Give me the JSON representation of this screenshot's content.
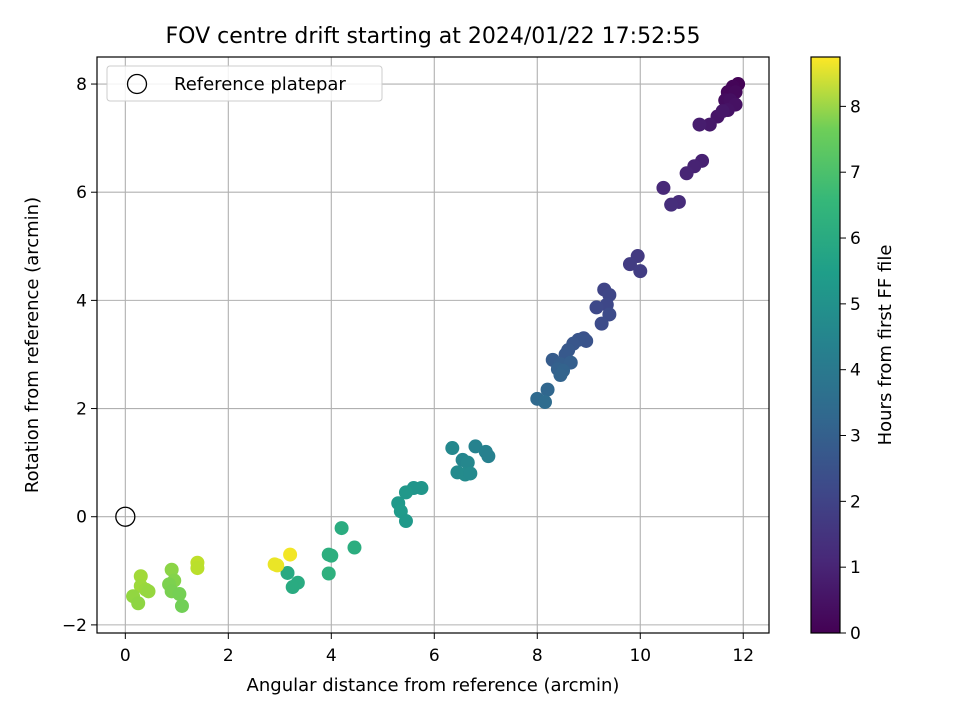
{
  "chart_data": {
    "type": "scatter",
    "title": "FOV centre drift starting at 2024/01/22 17:52:55",
    "xlabel": "Angular distance from reference (arcmin)",
    "ylabel": "Rotation from reference (arcmin)",
    "xlim": [
      -0.55,
      12.5
    ],
    "ylim": [
      -2.15,
      8.5
    ],
    "xticks": [
      "0",
      "2",
      "4",
      "6",
      "8",
      "10",
      "12"
    ],
    "yticks": [
      "−2",
      "0",
      "2",
      "4",
      "6",
      "8"
    ],
    "grid": true,
    "legend": {
      "placement": "top-left",
      "entries": [
        "Reference platepar"
      ]
    },
    "reference_point": {
      "x": 0,
      "y": 0
    },
    "colorbar": {
      "label": "Hours from first FF file",
      "colormap": "viridis",
      "range": [
        0,
        8.75
      ],
      "ticks": [
        "0",
        "1",
        "2",
        "3",
        "4",
        "5",
        "6",
        "7",
        "8"
      ]
    },
    "points": [
      {
        "x": 11.9,
        "y": 8.0,
        "c": 0.05
      },
      {
        "x": 11.8,
        "y": 7.95,
        "c": 0.1
      },
      {
        "x": 11.7,
        "y": 7.85,
        "c": 0.15
      },
      {
        "x": 11.85,
        "y": 7.85,
        "c": 0.2
      },
      {
        "x": 11.65,
        "y": 7.7,
        "c": 0.3
      },
      {
        "x": 11.75,
        "y": 7.7,
        "c": 0.35
      },
      {
        "x": 11.85,
        "y": 7.62,
        "c": 0.4
      },
      {
        "x": 11.7,
        "y": 7.52,
        "c": 0.45
      },
      {
        "x": 11.5,
        "y": 7.4,
        "c": 0.5
      },
      {
        "x": 11.6,
        "y": 7.5,
        "c": 0.55
      },
      {
        "x": 11.35,
        "y": 7.25,
        "c": 0.6
      },
      {
        "x": 11.15,
        "y": 7.25,
        "c": 0.7
      },
      {
        "x": 11.2,
        "y": 6.58,
        "c": 0.8
      },
      {
        "x": 11.05,
        "y": 6.48,
        "c": 0.85
      },
      {
        "x": 10.9,
        "y": 6.35,
        "c": 0.9
      },
      {
        "x": 10.45,
        "y": 6.08,
        "c": 1.0
      },
      {
        "x": 10.75,
        "y": 5.82,
        "c": 1.1
      },
      {
        "x": 10.6,
        "y": 5.77,
        "c": 1.15
      },
      {
        "x": 9.95,
        "y": 4.82,
        "c": 1.5
      },
      {
        "x": 9.8,
        "y": 4.67,
        "c": 1.55
      },
      {
        "x": 10.0,
        "y": 4.54,
        "c": 1.6
      },
      {
        "x": 9.3,
        "y": 4.2,
        "c": 1.8
      },
      {
        "x": 9.4,
        "y": 4.1,
        "c": 1.85
      },
      {
        "x": 9.35,
        "y": 3.92,
        "c": 1.9
      },
      {
        "x": 9.15,
        "y": 3.87,
        "c": 1.95
      },
      {
        "x": 9.4,
        "y": 3.74,
        "c": 2.0
      },
      {
        "x": 9.25,
        "y": 3.57,
        "c": 2.05
      },
      {
        "x": 8.9,
        "y": 3.3,
        "c": 2.2
      },
      {
        "x": 8.95,
        "y": 3.25,
        "c": 2.25
      },
      {
        "x": 8.8,
        "y": 3.27,
        "c": 2.3
      },
      {
        "x": 8.7,
        "y": 3.2,
        "c": 2.35
      },
      {
        "x": 8.6,
        "y": 3.08,
        "c": 2.4
      },
      {
        "x": 8.55,
        "y": 3.0,
        "c": 2.45
      },
      {
        "x": 8.3,
        "y": 2.9,
        "c": 2.55
      },
      {
        "x": 8.45,
        "y": 2.82,
        "c": 2.6
      },
      {
        "x": 8.65,
        "y": 2.85,
        "c": 2.65
      },
      {
        "x": 8.4,
        "y": 2.73,
        "c": 2.7
      },
      {
        "x": 8.5,
        "y": 2.7,
        "c": 2.75
      },
      {
        "x": 8.45,
        "y": 2.62,
        "c": 2.8
      },
      {
        "x": 8.2,
        "y": 2.35,
        "c": 2.9
      },
      {
        "x": 8.0,
        "y": 2.18,
        "c": 3.0
      },
      {
        "x": 8.15,
        "y": 2.12,
        "c": 3.05
      },
      {
        "x": 6.35,
        "y": 1.27,
        "c": 4.1
      },
      {
        "x": 6.55,
        "y": 1.05,
        "c": 4.0
      },
      {
        "x": 6.65,
        "y": 1.0,
        "c": 4.05
      },
      {
        "x": 6.45,
        "y": 0.82,
        "c": 4.15
      },
      {
        "x": 6.6,
        "y": 0.78,
        "c": 4.2
      },
      {
        "x": 6.7,
        "y": 0.8,
        "c": 4.18
      },
      {
        "x": 6.8,
        "y": 1.3,
        "c": 3.9
      },
      {
        "x": 7.0,
        "y": 1.2,
        "c": 3.85
      },
      {
        "x": 7.05,
        "y": 1.12,
        "c": 3.8
      },
      {
        "x": 5.75,
        "y": 0.53,
        "c": 4.6
      },
      {
        "x": 5.6,
        "y": 0.53,
        "c": 4.55
      },
      {
        "x": 5.45,
        "y": 0.45,
        "c": 4.65
      },
      {
        "x": 5.3,
        "y": 0.25,
        "c": 4.7
      },
      {
        "x": 5.35,
        "y": 0.1,
        "c": 4.75
      },
      {
        "x": 5.45,
        "y": -0.08,
        "c": 4.7
      },
      {
        "x": 4.2,
        "y": -0.21,
        "c": 5.4
      },
      {
        "x": 4.45,
        "y": -0.57,
        "c": 5.45
      },
      {
        "x": 3.95,
        "y": -0.7,
        "c": 5.5
      },
      {
        "x": 4.0,
        "y": -0.72,
        "c": 5.5
      },
      {
        "x": 3.95,
        "y": -1.05,
        "c": 5.55
      },
      {
        "x": 3.15,
        "y": -1.04,
        "c": 5.3
      },
      {
        "x": 3.35,
        "y": -1.22,
        "c": 5.35
      },
      {
        "x": 3.25,
        "y": -1.3,
        "c": 5.35
      },
      {
        "x": 3.2,
        "y": -0.7,
        "c": 8.6
      },
      {
        "x": 2.9,
        "y": -0.88,
        "c": 8.5
      },
      {
        "x": 2.95,
        "y": -0.9,
        "c": 8.5
      },
      {
        "x": 1.4,
        "y": -0.85,
        "c": 7.9
      },
      {
        "x": 1.4,
        "y": -0.95,
        "c": 7.85
      },
      {
        "x": 0.9,
        "y": -0.98,
        "c": 7.2
      },
      {
        "x": 0.95,
        "y": -1.18,
        "c": 7.1
      },
      {
        "x": 0.85,
        "y": -1.25,
        "c": 7.0
      },
      {
        "x": 0.9,
        "y": -1.38,
        "c": 6.95
      },
      {
        "x": 1.05,
        "y": -1.43,
        "c": 6.9
      },
      {
        "x": 1.1,
        "y": -1.65,
        "c": 6.85
      },
      {
        "x": 0.3,
        "y": -1.1,
        "c": 7.5
      },
      {
        "x": 0.3,
        "y": -1.28,
        "c": 7.45
      },
      {
        "x": 0.4,
        "y": -1.35,
        "c": 7.4
      },
      {
        "x": 0.45,
        "y": -1.38,
        "c": 7.35
      },
      {
        "x": 0.15,
        "y": -1.47,
        "c": 7.3
      },
      {
        "x": 0.25,
        "y": -1.6,
        "c": 7.25
      }
    ]
  }
}
